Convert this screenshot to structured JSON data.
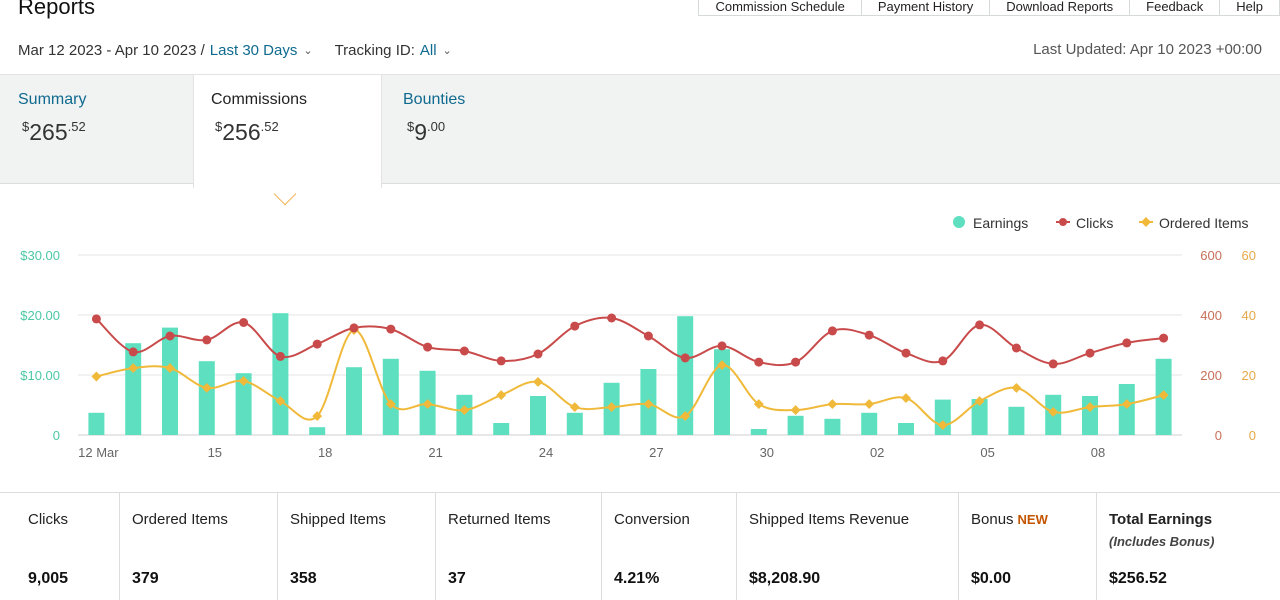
{
  "header": {
    "title": "Reports",
    "buttons": [
      "Commission Schedule",
      "Payment History",
      "Download Reports",
      "Feedback",
      "Help"
    ]
  },
  "filters": {
    "date_range": "Mar 12 2023 - Apr 10 2023 /",
    "date_preset": "Last 30 Days",
    "tracking_label": "Tracking ID:",
    "tracking_value": "All",
    "last_updated": "Last Updated: Apr 10 2023 +00:00"
  },
  "tabs": [
    {
      "label": "Summary",
      "currency": "$",
      "whole": "265",
      "cents": ".52"
    },
    {
      "label": "Commissions",
      "currency": "$",
      "whole": "256",
      "cents": ".52"
    },
    {
      "label": "Bounties",
      "currency": "$",
      "whole": "9",
      "cents": ".00"
    }
  ],
  "stats": [
    {
      "label": "Clicks",
      "value": "9,005"
    },
    {
      "label": "Ordered Items",
      "value": "379"
    },
    {
      "label": "Shipped Items",
      "value": "358"
    },
    {
      "label": "Returned Items",
      "value": "37"
    },
    {
      "label": "Conversion",
      "value": "4.21%"
    },
    {
      "label": "Shipped Items Revenue",
      "value": "$8,208.90"
    },
    {
      "label": "Bonus",
      "badge": "NEW",
      "value": "$0.00"
    },
    {
      "label": "Total Earnings",
      "sub": "(Includes Bonus)",
      "value": "$256.52"
    }
  ],
  "colors": {
    "earnings": "#5ee0c0",
    "clicks": "#c94a4a",
    "ordered": "#f0b93a",
    "link": "#0f6a8f"
  },
  "chart_data": {
    "type": "bar",
    "x_tick_labels": [
      "12 Mar",
      "15",
      "18",
      "21",
      "24",
      "27",
      "30",
      "02",
      "05",
      "08"
    ],
    "legend": [
      "Earnings",
      "Clicks",
      "Ordered Items"
    ],
    "legend_position": "top-right",
    "y_left_ticks": [
      "$30.00",
      "$20.00",
      "$10.00",
      "0"
    ],
    "y_right1_ticks": [
      "600",
      "400",
      "200",
      "0"
    ],
    "y_right2_ticks": [
      "60",
      "40",
      "20",
      "0"
    ],
    "ylim_left": [
      0,
      30
    ],
    "ylim_clicks": [
      0,
      600
    ],
    "ylim_ordered": [
      0,
      60
    ],
    "categories": [
      "Mar 12",
      "Mar 13",
      "Mar 14",
      "Mar 15",
      "Mar 16",
      "Mar 17",
      "Mar 18",
      "Mar 19",
      "Mar 20",
      "Mar 21",
      "Mar 22",
      "Mar 23",
      "Mar 24",
      "Mar 25",
      "Mar 26",
      "Mar 27",
      "Mar 28",
      "Mar 29",
      "Mar 30",
      "Mar 31",
      "Apr 01",
      "Apr 02",
      "Apr 03",
      "Apr 04",
      "Apr 05",
      "Apr 06",
      "Apr 07",
      "Apr 08",
      "Apr 09",
      "Apr 10"
    ],
    "series": [
      {
        "name": "Earnings",
        "type": "bar",
        "values": [
          3.7,
          15.3,
          17.9,
          12.3,
          10.3,
          20.3,
          1.3,
          11.3,
          12.7,
          10.7,
          6.7,
          2.0,
          6.5,
          3.7,
          8.7,
          11.0,
          19.8,
          14.3,
          1.0,
          3.2,
          2.7,
          3.7,
          2.0,
          5.9,
          6.0,
          4.7,
          6.7,
          6.5,
          8.5,
          12.7
        ]
      },
      {
        "name": "Clicks",
        "type": "line",
        "values": [
          387,
          277,
          330,
          317,
          375,
          262,
          303,
          357,
          353,
          293,
          280,
          247,
          270,
          363,
          390,
          330,
          257,
          297,
          243,
          243,
          347,
          333,
          273,
          247,
          367,
          290,
          237,
          273,
          307,
          323
        ]
      },
      {
        "name": "Ordered Items",
        "type": "line",
        "values": [
          19.5,
          22.3,
          22.3,
          15.7,
          18,
          11.3,
          6.3,
          35,
          10.3,
          10.3,
          8.3,
          13.3,
          17.7,
          9.3,
          9.3,
          10.3,
          6.3,
          23.3,
          10.3,
          8.3,
          10.3,
          10.3,
          12.3,
          3.3,
          11.3,
          15.7,
          7.7,
          9.3,
          10.3,
          13.3
        ]
      }
    ]
  }
}
